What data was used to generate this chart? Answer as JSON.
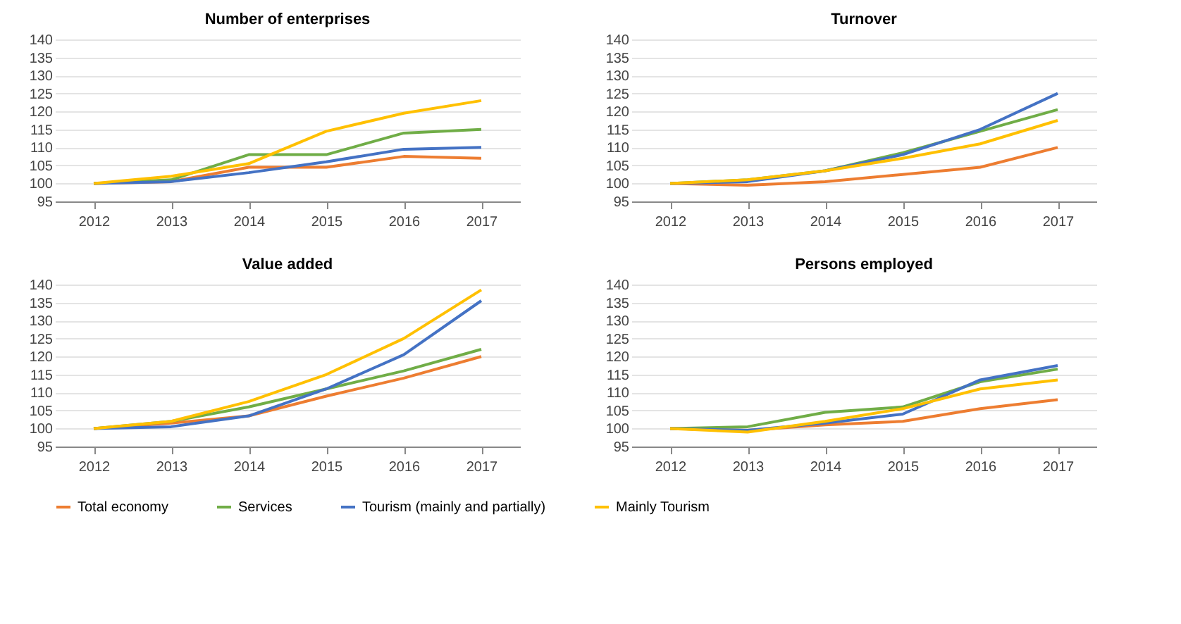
{
  "chart_data": [
    {
      "type": "line",
      "title": "Number of enterprises",
      "categories": [
        "2012",
        "2013",
        "2014",
        "2015",
        "2016",
        "2017"
      ],
      "ylim": [
        95,
        140
      ],
      "yticks": [
        95,
        100,
        105,
        110,
        115,
        120,
        125,
        130,
        135,
        140
      ],
      "grid": "y",
      "legend": "bottom",
      "series": [
        {
          "name": "Total economy",
          "color": "#ed7d31",
          "values": [
            100,
            100.5,
            104.5,
            104.5,
            107.5,
            107
          ]
        },
        {
          "name": "Services",
          "color": "#70ad47",
          "values": [
            100,
            101,
            108,
            108,
            114,
            115
          ]
        },
        {
          "name": "Tourism (mainly and partially)",
          "color": "#4472c4",
          "values": [
            100,
            100.5,
            103,
            106,
            109.5,
            110
          ]
        },
        {
          "name": "Mainly Tourism",
          "color": "#ffc000",
          "values": [
            100,
            102,
            105.5,
            114.5,
            119.5,
            123
          ]
        }
      ]
    },
    {
      "type": "line",
      "title": "Turnover",
      "categories": [
        "2012",
        "2013",
        "2014",
        "2015",
        "2016",
        "2017"
      ],
      "ylim": [
        95,
        140
      ],
      "yticks": [
        95,
        100,
        105,
        110,
        115,
        120,
        125,
        130,
        135,
        140
      ],
      "grid": "y",
      "legend": "bottom",
      "series": [
        {
          "name": "Total economy",
          "color": "#ed7d31",
          "values": [
            100,
            99.5,
            100.5,
            102.5,
            104.5,
            110
          ]
        },
        {
          "name": "Services",
          "color": "#70ad47",
          "values": [
            100,
            101,
            103.5,
            108.5,
            114.5,
            120.5
          ]
        },
        {
          "name": "Tourism (mainly and partially)",
          "color": "#4472c4",
          "values": [
            100,
            100.5,
            103.5,
            108,
            115,
            125
          ]
        },
        {
          "name": "Mainly Tourism",
          "color": "#ffc000",
          "values": [
            100,
            101,
            103.5,
            107,
            111,
            117.5
          ]
        }
      ]
    },
    {
      "type": "line",
      "title": "Value added",
      "categories": [
        "2012",
        "2013",
        "2014",
        "2015",
        "2016",
        "2017"
      ],
      "ylim": [
        95,
        140
      ],
      "yticks": [
        95,
        100,
        105,
        110,
        115,
        120,
        125,
        130,
        135,
        140
      ],
      "grid": "y",
      "legend": "bottom",
      "series": [
        {
          "name": "Total economy",
          "color": "#ed7d31",
          "values": [
            100,
            101.5,
            103.5,
            109,
            114,
            120
          ]
        },
        {
          "name": "Services",
          "color": "#70ad47",
          "values": [
            100,
            102,
            106,
            111,
            116,
            122
          ]
        },
        {
          "name": "Tourism (mainly and partially)",
          "color": "#4472c4",
          "values": [
            100,
            100.5,
            103.5,
            111,
            120.5,
            135.5
          ]
        },
        {
          "name": "Mainly Tourism",
          "color": "#ffc000",
          "values": [
            100,
            102,
            107.5,
            115,
            125,
            138.5
          ]
        }
      ]
    },
    {
      "type": "line",
      "title": "Persons employed",
      "categories": [
        "2012",
        "2013",
        "2014",
        "2015",
        "2016",
        "2017"
      ],
      "ylim": [
        95,
        140
      ],
      "yticks": [
        95,
        100,
        105,
        110,
        115,
        120,
        125,
        130,
        135,
        140
      ],
      "grid": "y",
      "legend": "bottom",
      "series": [
        {
          "name": "Total economy",
          "color": "#ed7d31",
          "values": [
            100,
            99.5,
            101,
            102,
            105.5,
            108
          ]
        },
        {
          "name": "Services",
          "color": "#70ad47",
          "values": [
            100,
            100.5,
            104.5,
            106,
            113,
            116.5
          ]
        },
        {
          "name": "Tourism (mainly and partially)",
          "color": "#4472c4",
          "values": [
            100,
            99.5,
            101.5,
            104,
            113.5,
            117.5
          ]
        },
        {
          "name": "Mainly Tourism",
          "color": "#ffc000",
          "values": [
            100,
            99,
            102,
            105.5,
            111,
            113.5
          ]
        }
      ]
    }
  ]
}
